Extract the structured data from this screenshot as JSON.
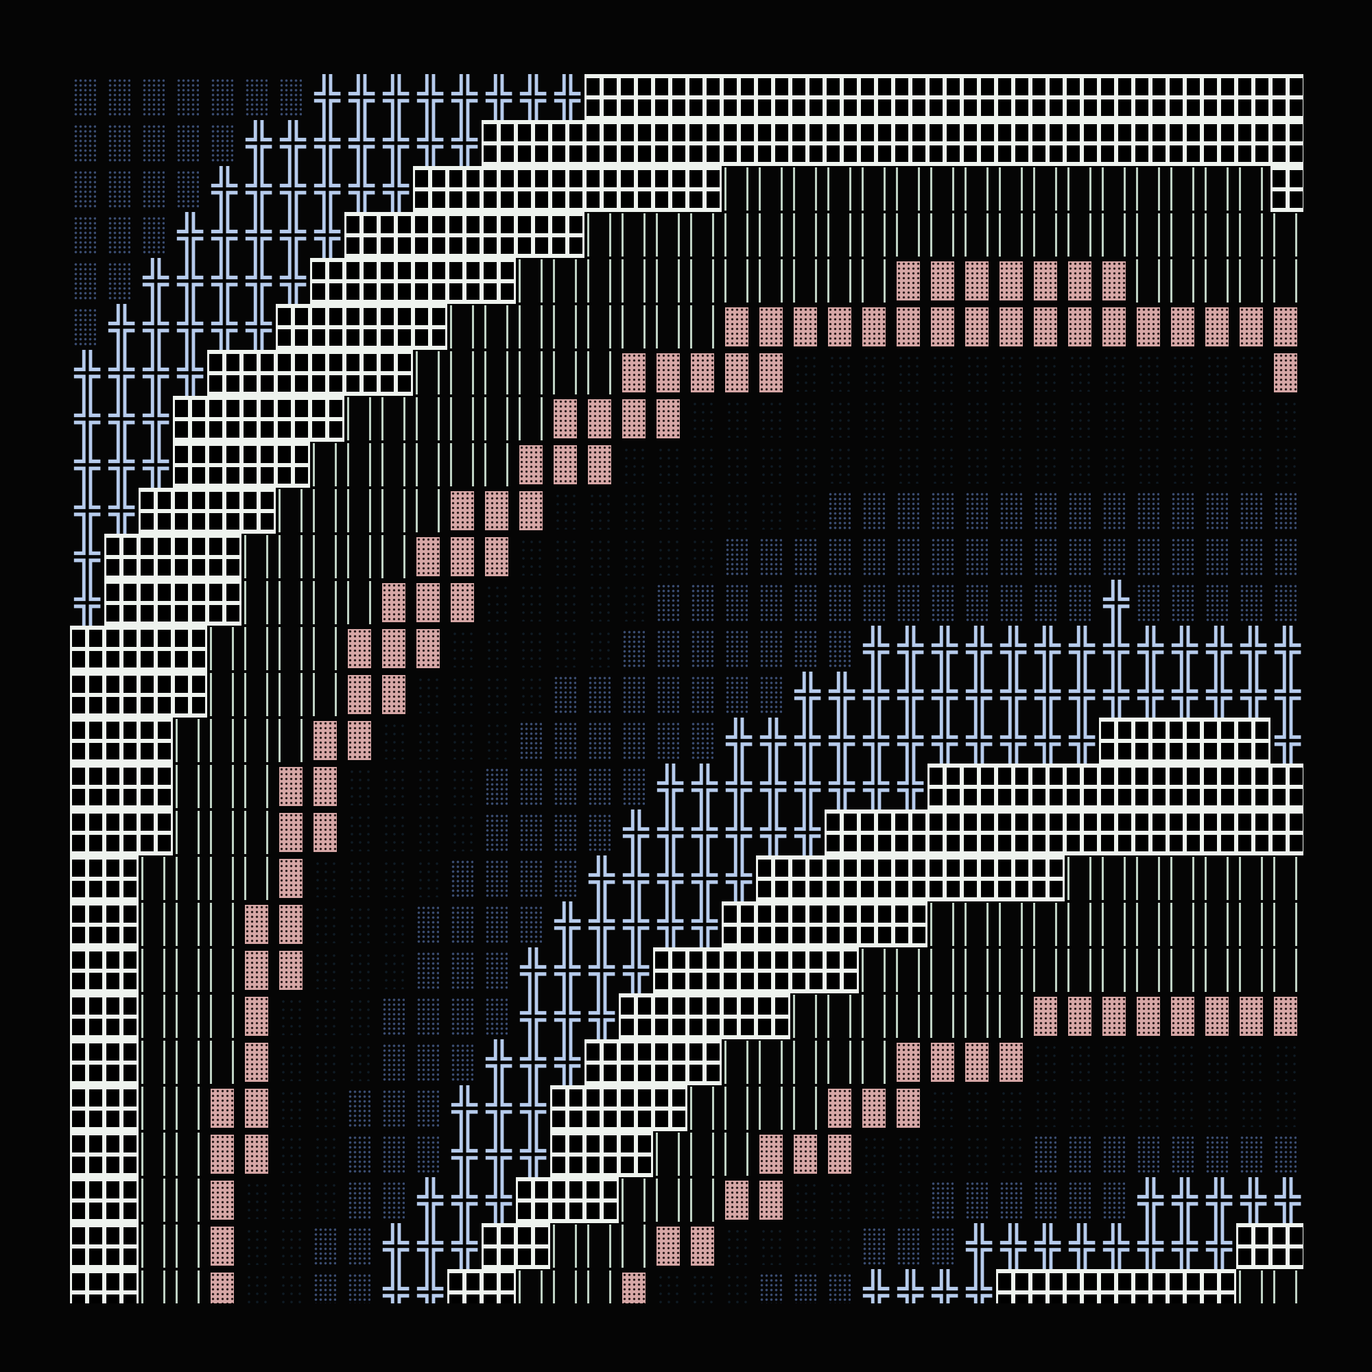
{
  "art": {
    "glyphs": {
      "d": {
        "name": "medium-shade-dots",
        "char": "▒"
      },
      "k": {
        "name": "dark-shade-dots",
        "char": "░"
      },
      "b": {
        "name": "double-cross",
        "char": "╬"
      },
      "w": {
        "name": "white-window-block",
        "char": "▦"
      },
      "g": {
        "name": "double-vertical",
        "char": "║"
      },
      "p": {
        "name": "pink-dense-shade",
        "char": "▓"
      }
    },
    "colors": {
      "background": "#050505",
      "dots": "#3a4c70",
      "dark": "#0f1b24",
      "blue": "#b6cbec",
      "white": "#eef3ee",
      "green": "#bfd2c4",
      "pink": "#d6a7a6"
    },
    "rows": [
      "dddddddbbbbbbbbwwwwwwwwwwwwwwwwwwwww",
      "dddddbbbbbbbwwwwwwwwwwwwwwwwwwwwwwww",
      "ddddbbbbbbwwwwwwwwwggggggggggggggggw",
      "dddbbbbbwwwwwwwggggggggggggggggggggg",
      "ddbbbbbwwwwwwgggggggggggpppppppggggg",
      "dbbbbbwwwwwggggggggppppppppppppppppp",
      "bbbbwwwwwwggggggpppppkkkkkkkkkkkkkkp",
      "bbbwwwwwggggggppppkkkkkkkkkkkkkkkkkk",
      "bbbwwwwggggggpppkkkkkkkkkkkkkkkkkkkk",
      "bbwwwwgggggpppkkkkkkkkdddddddddddddd",
      "bwwwwgggggpppkkkkkkddddddddddddddddd",
      "bwwwwggggpppkkkkkdddddddddddddbddddd",
      "wwwwggggpppkkkkkdddddddbbbbbbbbbbbbb",
      "wwwwggggppkkkkdddddddbbbbbbbbbbbbbbb",
      "wwwggggppkkkkddddddbbbbbbbbbbbwwwwwb",
      "wwwgggppkkkkdddddbbbbbbbbwwwwwwwwwww",
      "wwwgggppkkkkddddbbbbbbwwwwwwwwwwwwww",
      "wwggggpkkkkddddbbbbbwwwwwwwwwggggggg",
      "wwgggppkkkddddbbbbbwwwwwwggggggggggg",
      "wwgggppkkkdddbbbbwwwwwwggggggggggggg",
      "wwgggpkkkddddbbbwwwwwgggggggpppppppp",
      "wwgggpkkkdddbbbwwwwgggggppppkkkkkkkk",
      "wwggppkkdddbbbwwwwggggpppkkkkkkkkkkk",
      "wwggppkkdddbbbwwwgggpppkkkkkdddddddd",
      "wwggpkkkddbbbwwwgggppkkkkddddddbbbbb",
      "wwggpkkddbbbwwgggppkkkkdddbbbbbbbbww",
      "wwggpkkddbbwwgggpkkkdddbbbbwwwwwwwgg"
    ]
  }
}
